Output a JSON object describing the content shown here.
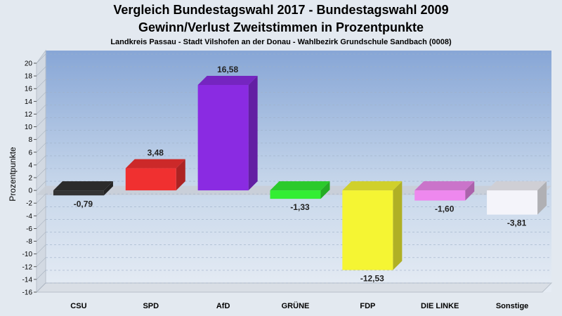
{
  "chart_data": {
    "type": "bar",
    "title": "Vergleich Bundestagswahl 2017 - Bundestagswahl 2009",
    "subtitle": "Gewinn/Verlust Zweitstimmen in Prozentpunkte",
    "subtitle2": "Landkreis Passau - Stadt Vilshofen an der Donau - Wahlbezirk  Grundschule Sandbach (0008)",
    "ylabel": "Prozentpunkte",
    "xlabel": "",
    "ylim": [
      -16,
      20
    ],
    "yticks": [
      20,
      18,
      16,
      14,
      12,
      10,
      8,
      6,
      4,
      2,
      0,
      -2,
      -4,
      -6,
      -8,
      -10,
      -12,
      -14,
      -16
    ],
    "categories": [
      "CSU",
      "SPD",
      "AfD",
      "GRÜNE",
      "FDP",
      "DIE LINKE",
      "Sonstige"
    ],
    "values": [
      -0.79,
      3.48,
      16.58,
      -1.33,
      -12.53,
      -1.6,
      -3.81
    ],
    "value_labels": [
      "-0,79",
      "3,48",
      "16,58",
      "-1,33",
      "-12,53",
      "-1,60",
      "-3,81"
    ],
    "colors": [
      "#333333",
      "#f03030",
      "#8a2be2",
      "#33ee33",
      "#f5f533",
      "#ee88ee",
      "#f4f4fa"
    ],
    "grid": true
  }
}
